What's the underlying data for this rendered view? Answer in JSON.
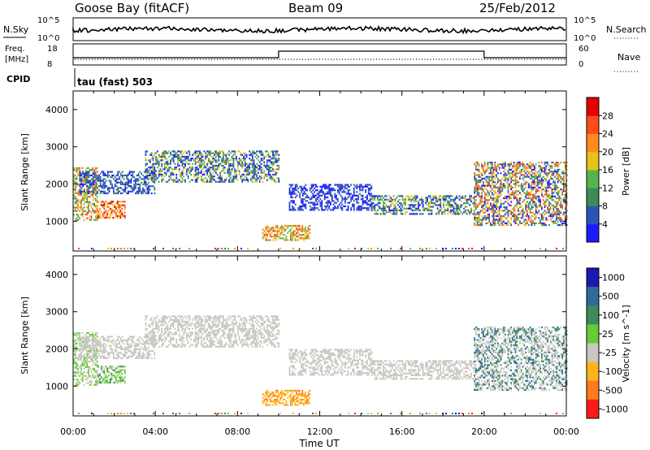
{
  "header": {
    "station": "Goose Bay (fitACF)",
    "beam": "Beam 09",
    "date": "25/Feb/2012"
  },
  "status": {
    "nsky_label": "N.Sky",
    "nsearch_label": "N.Search",
    "freq_label_1": "Freq.",
    "freq_label_2": "[MHz]",
    "nave_label": "Nave",
    "cpid_label": "CPID",
    "cpid_text": "tau (fast) 503",
    "log_top": "10^5",
    "log_bottom": "10^0",
    "freq_top": "18",
    "freq_bottom": "8",
    "nave_top": "60",
    "nave_bottom": "0"
  },
  "chart_data": [
    {
      "type": "heatmap",
      "quantity": "Power",
      "ylabel": "Slant Range [km]",
      "ylim": [
        200,
        4500
      ],
      "yticks": [
        "1000",
        "2000",
        "3000",
        "4000"
      ],
      "colorbar_label": "Power [dB]",
      "colorbar_ticks": [
        "4",
        "8",
        "12",
        "16",
        "20",
        "24",
        "28"
      ],
      "colorbar_colors": [
        "#1a1aff",
        "#2b55b5",
        "#3d8a5a",
        "#59b34d",
        "#e6c21a",
        "#ff8c1a",
        "#ff4d1a",
        "#e60000"
      ],
      "regions": [
        {
          "x0": 0.0,
          "x1": 1.2,
          "r0": 1050,
          "r1": 2450,
          "levels": [
            2,
            3,
            4,
            5,
            6
          ]
        },
        {
          "x0": 1.2,
          "x1": 2.5,
          "r0": 1100,
          "r1": 1550,
          "levels": [
            4,
            5,
            6,
            7
          ]
        },
        {
          "x0": 0.3,
          "x1": 4.0,
          "r0": 1750,
          "r1": 2350,
          "levels": [
            0,
            1,
            2
          ]
        },
        {
          "x0": 3.5,
          "x1": 10.0,
          "r0": 2050,
          "r1": 2900,
          "levels": [
            0,
            1,
            2,
            3,
            4
          ]
        },
        {
          "x0": 9.2,
          "x1": 11.5,
          "r0": 480,
          "r1": 900,
          "levels": [
            3,
            4,
            5,
            6
          ]
        },
        {
          "x0": 10.5,
          "x1": 14.5,
          "r0": 1300,
          "r1": 2000,
          "levels": [
            0,
            1
          ]
        },
        {
          "x0": 14.5,
          "x1": 19.5,
          "r0": 1200,
          "r1": 1700,
          "levels": [
            0,
            1,
            2,
            3,
            4
          ]
        },
        {
          "x0": 19.5,
          "x1": 24.0,
          "r0": 900,
          "r1": 2600,
          "levels": [
            0,
            1,
            2,
            3,
            4,
            5,
            6
          ]
        }
      ]
    },
    {
      "type": "heatmap",
      "quantity": "Velocity",
      "xlabel": "Time UT",
      "ylabel": "Slant Range [km]",
      "ylim": [
        200,
        4500
      ],
      "xlim": [
        0,
        24
      ],
      "xticks": [
        "00:00",
        "04:00",
        "08:00",
        "12:00",
        "16:00",
        "20:00",
        "00:00"
      ],
      "yticks": [
        "1000",
        "2000",
        "3000",
        "4000"
      ],
      "colorbar_label": "Velocity [m s^-1]",
      "colorbar_ticks": [
        "1000",
        "500",
        "100",
        "25",
        "-25",
        "-100",
        "-500",
        "-1000"
      ],
      "colorbar_colors": [
        "#1a1ab3",
        "#2e6b99",
        "#3d8a5a",
        "#66cc33",
        "#c8c8c0",
        "#ffb31a",
        "#ff7a1a",
        "#ff1a1a"
      ],
      "regions": [
        {
          "x0": 0.0,
          "x1": 1.2,
          "r0": 1050,
          "r1": 2450,
          "levels": [
            3,
            3,
            4,
            4
          ]
        },
        {
          "x0": 1.2,
          "x1": 2.5,
          "r0": 1100,
          "r1": 1550,
          "levels": [
            2,
            3,
            3,
            4
          ]
        },
        {
          "x0": 0.3,
          "x1": 4.0,
          "r0": 1750,
          "r1": 2350,
          "levels": [
            4
          ]
        },
        {
          "x0": 3.5,
          "x1": 10.0,
          "r0": 2050,
          "r1": 2900,
          "levels": [
            4
          ]
        },
        {
          "x0": 9.2,
          "x1": 11.5,
          "r0": 480,
          "r1": 900,
          "levels": [
            5,
            5,
            6
          ]
        },
        {
          "x0": 10.5,
          "x1": 14.5,
          "r0": 1300,
          "r1": 2000,
          "levels": [
            4
          ]
        },
        {
          "x0": 14.5,
          "x1": 19.5,
          "r0": 1200,
          "r1": 1700,
          "levels": [
            4
          ]
        },
        {
          "x0": 19.5,
          "x1": 24.0,
          "r0": 900,
          "r1": 2600,
          "levels": [
            4,
            4,
            4,
            2,
            1
          ]
        }
      ]
    }
  ],
  "frequency_trace": [
    {
      "x0": 0,
      "x1": 10,
      "level": "low"
    },
    {
      "x0": 10,
      "x1": 20,
      "level": "high"
    },
    {
      "x0": 20,
      "x1": 24,
      "level": "low"
    }
  ]
}
